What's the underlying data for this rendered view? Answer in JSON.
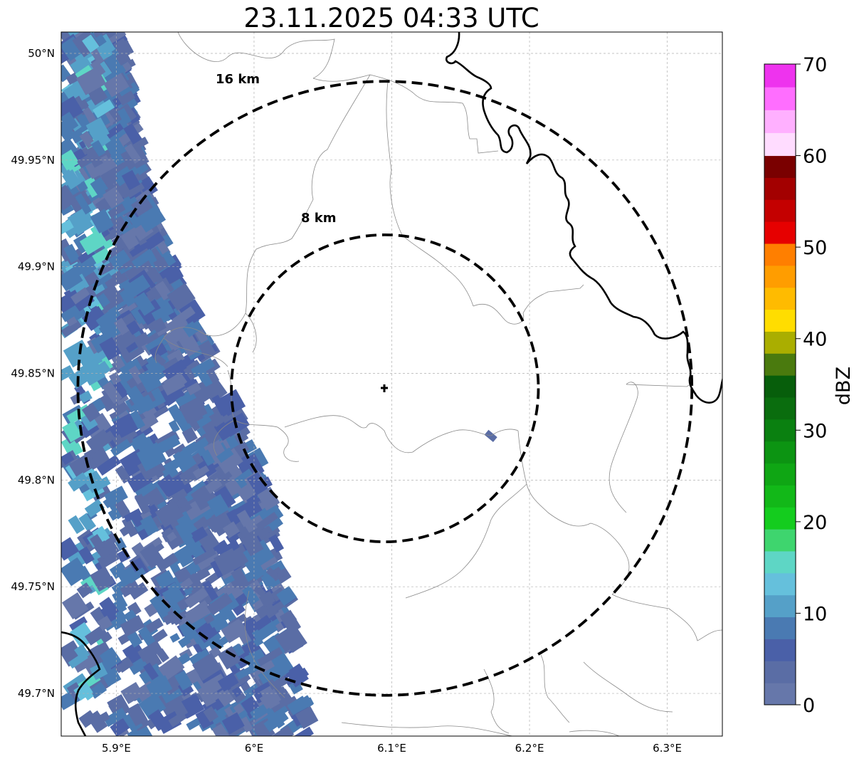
{
  "title": "23.11.2025 04:33 UTC",
  "map": {
    "lon_range": [
      5.86,
      6.34
    ],
    "lat_range": [
      49.68,
      50.01
    ],
    "x_ticks": [
      {
        "value": 5.9,
        "label": "5.9°E"
      },
      {
        "value": 6.0,
        "label": "6°E"
      },
      {
        "value": 6.1,
        "label": "6.1°E"
      },
      {
        "value": 6.2,
        "label": "6.2°E"
      },
      {
        "value": 6.3,
        "label": "6.3°E"
      }
    ],
    "y_ticks": [
      {
        "value": 50.0,
        "label": "50°N"
      },
      {
        "value": 49.95,
        "label": "49.95°N"
      },
      {
        "value": 49.9,
        "label": "49.9°N"
      },
      {
        "value": 49.85,
        "label": "49.85°N"
      },
      {
        "value": 49.8,
        "label": "49.8°N"
      },
      {
        "value": 49.75,
        "label": "49.75°N"
      },
      {
        "value": 49.7,
        "label": "49.7°N"
      }
    ],
    "grid": true,
    "radar_site": {
      "lon": 6.095,
      "lat": 49.843
    },
    "range_rings": [
      {
        "radius_km": 8,
        "label": "8 km"
      },
      {
        "radius_km": 16,
        "label": "16 km"
      }
    ]
  },
  "colorbar": {
    "label": "dBZ",
    "min": 0,
    "max": 70,
    "ticks": [
      "0",
      "10",
      "20",
      "30",
      "40",
      "50",
      "60",
      "70"
    ],
    "colors": [
      "#6677aa",
      "#5a6da5",
      "#4a60a8",
      "#4a7ab2",
      "#55a0c8",
      "#65c0dc",
      "#5ed6c5",
      "#3ed56e",
      "#14cc1e",
      "#12b818",
      "#0fa614",
      "#0c9412",
      "#0a8010",
      "#0a6d0e",
      "#075e0b",
      "#4a7a0e",
      "#aaae00",
      "#ffdd00",
      "#ffbb00",
      "#ff9d00",
      "#ff7f00",
      "#e60000",
      "#c40000",
      "#a30000",
      "#7a0000",
      "#ffdcff",
      "#ffb0ff",
      "#ff6eff",
      "#ee33ee"
    ],
    "extended_top_step": true
  }
}
